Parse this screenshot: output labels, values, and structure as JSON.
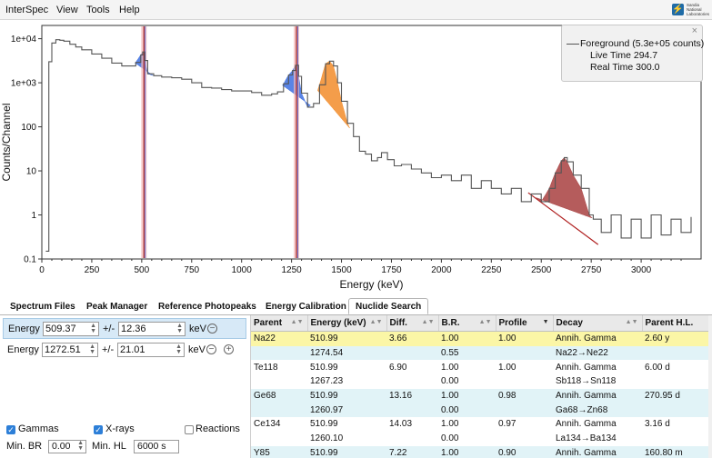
{
  "menubar": {
    "items": [
      "InterSpec",
      "View",
      "Tools",
      "Help"
    ],
    "logo_text": "Sandia National Laboratories"
  },
  "legend": {
    "close_symbol": "×",
    "foreground": "Foreground (5.3e+05 counts)",
    "live_time": "Live Time 294.7",
    "real_time": "Real Time 300.0"
  },
  "chart_data": {
    "type": "line",
    "xlabel": "Energy (keV)",
    "ylabel": "Counts/Channel",
    "xlim": [
      0,
      3300
    ],
    "ylim": [
      0.1,
      20000
    ],
    "yscale": "log",
    "x_ticks": [
      0,
      250,
      500,
      750,
      1000,
      1250,
      1500,
      1750,
      2000,
      2250,
      2500,
      2750,
      3000
    ],
    "y_tick_labels": [
      "1e+04",
      "1e+03",
      "100",
      "10",
      "1",
      "0.1"
    ],
    "y_tick_values": [
      10000,
      1000,
      100,
      10,
      1,
      0.1
    ],
    "series": [
      {
        "name": "Foreground",
        "color": "#555555",
        "x": [
          20,
          35,
          50,
          70,
          90,
          110,
          140,
          170,
          200,
          250,
          300,
          350,
          400,
          440,
          470,
          495,
          505,
          515,
          530,
          560,
          600,
          650,
          700,
          750,
          800,
          850,
          900,
          950,
          1000,
          1050,
          1100,
          1150,
          1180,
          1210,
          1235,
          1255,
          1270,
          1285,
          1300,
          1330,
          1360,
          1390,
          1420,
          1440,
          1460,
          1480,
          1500,
          1530,
          1560,
          1590,
          1620,
          1650,
          1680,
          1700,
          1730,
          1764,
          1800,
          1850,
          1900,
          1950,
          2000,
          2050,
          2100,
          2150,
          2200,
          2250,
          2300,
          2350,
          2400,
          2450,
          2500,
          2540,
          2570,
          2600,
          2615,
          2630,
          2660,
          2700,
          2740,
          2760,
          2800,
          2850,
          2900,
          2950,
          3000,
          3050,
          3100,
          3150,
          3200,
          3250
        ],
        "y": [
          0.15,
          3000,
          8000,
          9500,
          9200,
          8800,
          7500,
          6500,
          5600,
          4500,
          3600,
          2800,
          2400,
          2400,
          2900,
          4300,
          5000,
          3200,
          1600,
          1450,
          1350,
          1300,
          1200,
          1000,
          780,
          760,
          700,
          650,
          650,
          600,
          520,
          560,
          620,
          950,
          1500,
          1900,
          2500,
          1400,
          580,
          280,
          340,
          900,
          2700,
          3100,
          2400,
          1000,
          380,
          120,
          60,
          28,
          24,
          17,
          20,
          26,
          18,
          13,
          14,
          11,
          9,
          7,
          8,
          6,
          8,
          4,
          6,
          4,
          3,
          4,
          2,
          3,
          2,
          4,
          9,
          17,
          20,
          16,
          8,
          4,
          1,
          0.8,
          0.4,
          1,
          0.3,
          0.8,
          0.3,
          1,
          0.35,
          0.8,
          0.4,
          0.9
        ]
      }
    ],
    "peaks": [
      {
        "center": 511.0,
        "fill": "#3d6fe0",
        "marker": "#a02020"
      },
      {
        "center": 1274.5,
        "fill": "#3d6fe0",
        "marker": "#a02020"
      },
      {
        "center": 1460.8,
        "fill": "#f28c2a",
        "marker": ""
      },
      {
        "center": 2614.5,
        "fill": "#a84040",
        "marker": ""
      }
    ]
  },
  "tabs": {
    "items": [
      "Spectrum Files",
      "Peak Manager",
      "Reference Photopeaks",
      "Energy Calibration",
      "Nuclide Search"
    ],
    "active": "Nuclide Search"
  },
  "search": {
    "rows": [
      {
        "label": "Energy",
        "energy": "509.37",
        "pm": "+/-",
        "window": "12.36",
        "unit": "keV",
        "btn": "−"
      },
      {
        "label": "Energy",
        "energy": "1272.51",
        "pm": "+/-",
        "window": "21.01",
        "unit": "keV",
        "btn": "−",
        "add": "+"
      }
    ],
    "gammas_label": "Gammas",
    "xrays_label": "X-rays",
    "reactions_label": "Reactions",
    "min_br_label": "Min. BR",
    "min_br_value": "0.00",
    "min_hl_label": "Min. HL",
    "min_hl_value": "6000 s"
  },
  "results": {
    "columns": [
      "Parent",
      "Energy (keV)",
      "Diff.",
      "B.R.",
      "Profile",
      "Decay",
      "Parent H.L."
    ],
    "rows": [
      [
        "Na22",
        "510.99",
        "3.66",
        "1.00",
        "1.00",
        "Annih. Gamma",
        "2.60 y"
      ],
      [
        "",
        "1274.54",
        "",
        "0.55",
        "",
        "Na22→Ne22",
        ""
      ],
      [
        "Te118",
        "510.99",
        "6.90",
        "1.00",
        "1.00",
        "Annih. Gamma",
        "6.00 d"
      ],
      [
        "",
        "1267.23",
        "",
        "0.00",
        "",
        "Sb118→Sn118",
        ""
      ],
      [
        "Ge68",
        "510.99",
        "13.16",
        "1.00",
        "0.98",
        "Annih. Gamma",
        "270.95 d"
      ],
      [
        "",
        "1260.97",
        "",
        "0.00",
        "",
        "Ga68→Zn68",
        ""
      ],
      [
        "Ce134",
        "510.99",
        "14.03",
        "1.00",
        "0.97",
        "Annih. Gamma",
        "3.16 d"
      ],
      [
        "",
        "1260.10",
        "",
        "0.00",
        "",
        "La134→Ba134",
        ""
      ],
      [
        "Y85",
        "510.99",
        "7.22",
        "1.00",
        "0.90",
        "Annih. Gamma",
        "160.80 m"
      ]
    ]
  }
}
